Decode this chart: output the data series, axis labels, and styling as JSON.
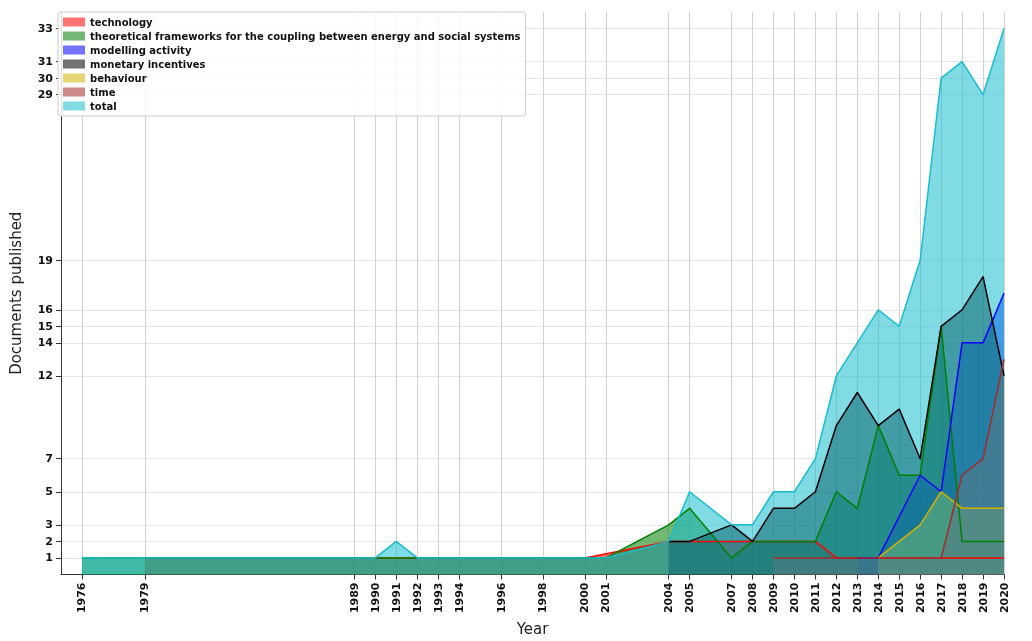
{
  "chart_data": {
    "type": "area",
    "xlabel": "Year",
    "ylabel": "Documents published",
    "xlim": [
      1975,
      2020
    ],
    "xticks": [
      1976,
      1979,
      1989,
      1990,
      1991,
      1992,
      1993,
      1994,
      1996,
      1998,
      2000,
      2001,
      2004,
      2005,
      2007,
      2008,
      2009,
      2010,
      2011,
      2012,
      2013,
      2014,
      2015,
      2016,
      2017,
      2018,
      2019,
      2020
    ],
    "ylim": [
      0,
      34
    ],
    "yticks": [
      1,
      2,
      3,
      5,
      7,
      12,
      14,
      15,
      16,
      19,
      29,
      30,
      31,
      33
    ],
    "grid": true,
    "legend": "top left",
    "marker": "none",
    "series": [
      {
        "name": "technology",
        "color": "#ff0000",
        "x": [
          1979,
          1989,
          1990,
          1991,
          1992,
          1993,
          1994,
          1996,
          1998,
          2000,
          2004,
          2005,
          2007,
          2008,
          2009,
          2010,
          2011,
          2012,
          2013,
          2014,
          2015,
          2016,
          2017,
          2018,
          2019,
          2020
        ],
        "values": [
          1,
          1,
          1,
          1,
          1,
          1,
          1,
          1,
          1,
          1,
          2,
          2,
          2,
          2,
          2,
          2,
          2,
          1,
          1,
          1,
          1,
          1,
          1,
          1,
          1,
          1
        ]
      },
      {
        "name": "theoretical frameworks for the coupling between energy and social systems",
        "color": "#008000",
        "x": [
          1976,
          1979,
          1989,
          1990,
          1991,
          1992,
          1993,
          1994,
          1996,
          1998,
          2000,
          2001,
          2004,
          2005,
          2007,
          2008,
          2009,
          2010,
          2011,
          2012,
          2013,
          2014,
          2015,
          2016,
          2017,
          2018,
          2019,
          2020
        ],
        "values": [
          1,
          1,
          1,
          1,
          1,
          1,
          1,
          1,
          1,
          1,
          1,
          1,
          3,
          4,
          1,
          2,
          2,
          2,
          2,
          5,
          4,
          9,
          6,
          6,
          15,
          2,
          2,
          2
        ]
      },
      {
        "name": "modelling activity",
        "color": "#0000ff",
        "x": [
          2013,
          2014,
          2016,
          2017,
          2018,
          2019,
          2020
        ],
        "values": [
          1,
          1,
          6,
          5,
          14,
          14,
          17
        ]
      },
      {
        "name": "monetary incentives",
        "color": "#000000",
        "x": [
          2004,
          2005,
          2007,
          2008,
          2009,
          2010,
          2011,
          2012,
          2013,
          2014,
          2015,
          2016,
          2017,
          2018,
          2019,
          2020
        ],
        "values": [
          2,
          2,
          3,
          2,
          4,
          4,
          5,
          9,
          11,
          9,
          10,
          7,
          15,
          16,
          18,
          12
        ]
      },
      {
        "name": "behaviour",
        "color": "#d4b000",
        "x": [
          2014,
          2015,
          2016,
          2017,
          2018,
          2019,
          2020
        ],
        "values": [
          1,
          2,
          3,
          5,
          4,
          4,
          4
        ]
      },
      {
        "name": "time",
        "color": "#a52a2a",
        "x": [
          2009,
          2010,
          2011,
          2012,
          2013,
          2014,
          2015,
          2016,
          2017,
          2018,
          2019,
          2020
        ],
        "values": [
          1,
          1,
          1,
          1,
          1,
          1,
          1,
          1,
          1,
          6,
          7,
          13
        ]
      },
      {
        "name": "total",
        "color": "#17becf",
        "x": [
          1976,
          1979,
          1989,
          1990,
          1991,
          1992,
          1993,
          1994,
          1996,
          1998,
          2000,
          2001,
          2004,
          2005,
          2007,
          2008,
          2009,
          2010,
          2011,
          2012,
          2013,
          2014,
          2015,
          2016,
          2017,
          2018,
          2019,
          2020
        ],
        "values": [
          1,
          1,
          1,
          1,
          2,
          1,
          1,
          1,
          1,
          1,
          1,
          1,
          2,
          5,
          3,
          3,
          5,
          5,
          7,
          12,
          14,
          16,
          15,
          19,
          30,
          31,
          29,
          33
        ]
      }
    ]
  }
}
